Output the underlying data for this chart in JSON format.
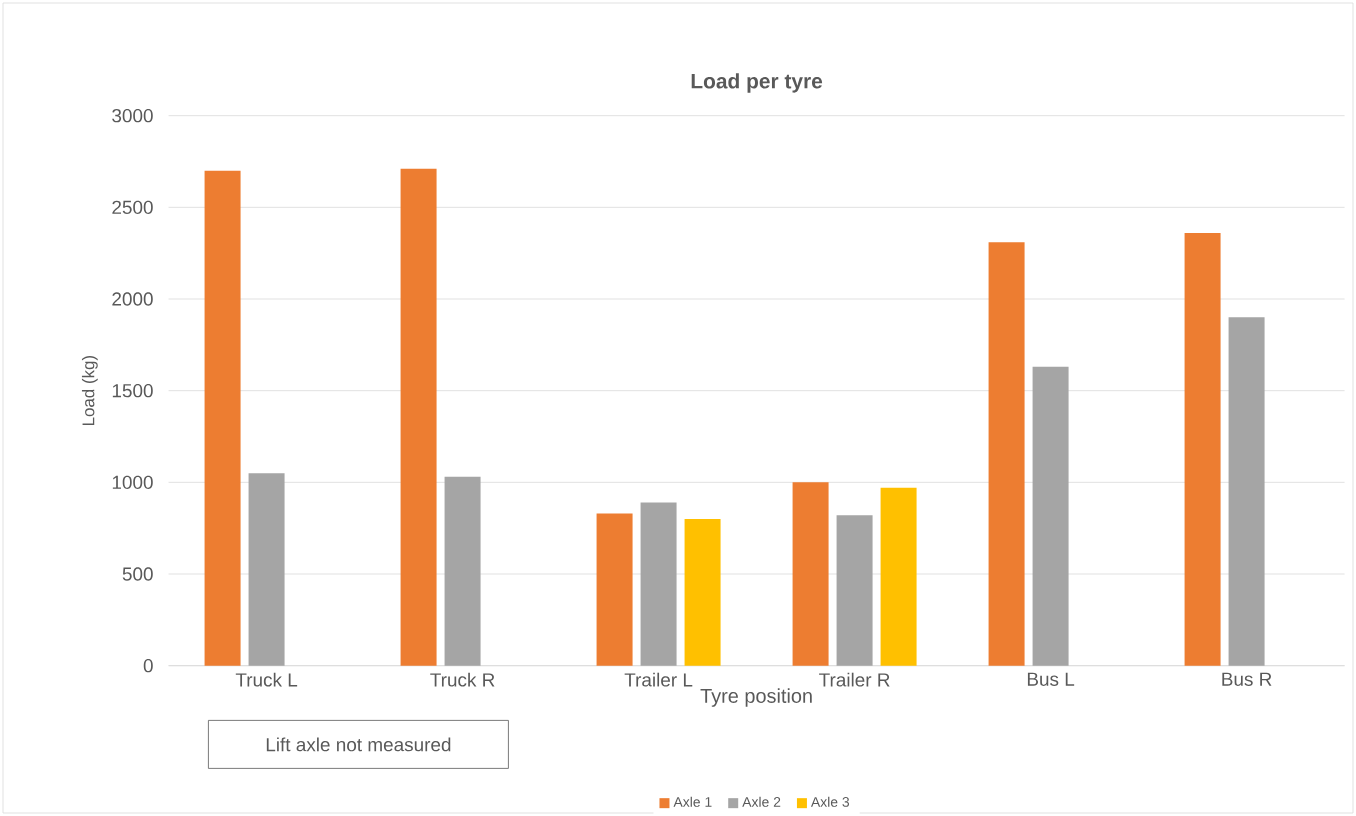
{
  "chart_data": {
    "type": "bar",
    "title": "Load per tyre",
    "xlabel": "Tyre position",
    "ylabel": "Load (kg)",
    "categories": [
      "Truck L",
      "Truck R",
      "Trailer L",
      "Trailer R",
      "Bus L",
      "Bus R"
    ],
    "series": [
      {
        "name": "Axle 1",
        "color": "#ed7d31",
        "values": [
          2700,
          2710,
          830,
          1000,
          2310,
          2360
        ]
      },
      {
        "name": "Axle 2",
        "color": "#a5a5a5",
        "values": [
          1050,
          1030,
          890,
          820,
          1630,
          1900
        ]
      },
      {
        "name": "Axle 3",
        "color": "#ffc000",
        "values": [
          null,
          null,
          800,
          970,
          null,
          null
        ]
      }
    ],
    "ylim": [
      0,
      3000
    ],
    "yticks": [
      0,
      500,
      1000,
      1500,
      2000,
      2500,
      3000
    ],
    "grid": "y",
    "legend": "bottom",
    "annotations": [
      "Lift axle not measured"
    ]
  }
}
